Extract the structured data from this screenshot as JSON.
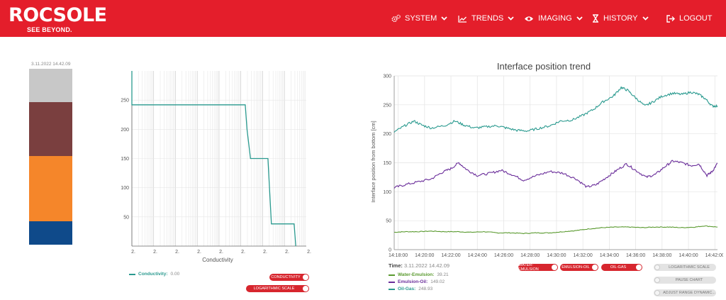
{
  "brand": {
    "logo_text": "ROCSOLE",
    "tagline": "SEE BEYOND."
  },
  "nav": {
    "system": "SYSTEM",
    "trends": "TRENDS",
    "imaging": "IMAGING",
    "history": "HISTORY",
    "logout": "LOGOUT"
  },
  "column": {
    "timestamp": "3.11.2022 14.42.09",
    "layers": [
      {
        "name": "gas",
        "color": "#c8c8c8"
      },
      {
        "name": "oil",
        "color": "#7a3f3f"
      },
      {
        "name": "emulsion",
        "color": "#f5862a"
      },
      {
        "name": "water",
        "color": "#0f4a8a"
      }
    ]
  },
  "conductivity_panel": {
    "xlabel": "Conductivity",
    "legend_label": "Conductivity:",
    "legend_value": "0.00",
    "toggle_conductivity": "CONDUCTIVITY",
    "toggle_log": "LOGARITHMIC SCALE"
  },
  "trend_panel": {
    "title": "Interface position trend",
    "ylabel": "Interface position from bottom [cm]",
    "time_label": "Time:",
    "time_value": "3.11.2022 14.42.09",
    "legend": [
      {
        "label": "Water-Emulsion:",
        "value": "39.21",
        "color": "#5a9a2f"
      },
      {
        "label": "Emulsion-Oil:",
        "value": "149.02",
        "color": "#6a2d9a"
      },
      {
        "label": "Oil-Gas:",
        "value": "248.93",
        "color": "#2a9a8f"
      }
    ],
    "series_toggles": [
      "WATER-EMULSION",
      "EMULSION-OIL",
      "OIL-GAS"
    ],
    "options": [
      "LOGARITHMIC SCALE",
      "PAUSE CHART",
      "ADJUST RANGE DYNAMIC..."
    ]
  },
  "chart_data": [
    {
      "type": "line",
      "title": "",
      "xlabel": "Conductivity",
      "ylabel": "",
      "ylim": [
        0,
        300
      ],
      "x_tick_labels": [
        "2.",
        "2.",
        "2.",
        "2.",
        "2.",
        "2.",
        "2.",
        "2.",
        "2."
      ],
      "y_ticks": [
        50,
        100,
        150,
        200,
        250
      ],
      "x_scale": "log",
      "series": [
        {
          "name": "Conductivity",
          "color": "#2a9a8f",
          "points": [
            [
              0.0,
              300
            ],
            [
              0.0,
              242
            ],
            [
              0.65,
              242
            ],
            [
              0.66,
              200
            ],
            [
              0.68,
              150
            ],
            [
              0.78,
              150
            ],
            [
              0.8,
              38
            ],
            [
              0.93,
              38
            ],
            [
              0.94,
              0
            ]
          ]
        }
      ]
    },
    {
      "type": "line",
      "title": "Interface position trend",
      "xlabel": "",
      "ylabel": "Interface position from bottom [cm]",
      "ylim": [
        0,
        300
      ],
      "y_ticks": [
        0,
        50,
        100,
        150,
        200,
        250,
        300
      ],
      "x_ticks": [
        "14:18:00",
        "14:20:00",
        "14:22:00",
        "14:24:00",
        "14:26:00",
        "14:28:00",
        "14:30:00",
        "14:32:00",
        "14:34:00",
        "14:36:00",
        "14:38:00",
        "14:40:00",
        "14:42:00"
      ],
      "x_minutes_start": 17.7,
      "x_minutes_end": 42.2,
      "series": [
        {
          "name": "Water-Emulsion",
          "color": "#5a9a2f",
          "points": [
            [
              17.7,
              30
            ],
            [
              18.5,
              31
            ],
            [
              19.5,
              31
            ],
            [
              20.5,
              32
            ],
            [
              21.5,
              31
            ],
            [
              22.5,
              31
            ],
            [
              23.5,
              30
            ],
            [
              24.5,
              31
            ],
            [
              25.5,
              29
            ],
            [
              26.5,
              29
            ],
            [
              27.5,
              28
            ],
            [
              28.5,
              29
            ],
            [
              29.5,
              29
            ],
            [
              30.5,
              31
            ],
            [
              31.5,
              33
            ],
            [
              32.5,
              36
            ],
            [
              33.5,
              38
            ],
            [
              34.5,
              39
            ],
            [
              35.5,
              39
            ],
            [
              36.5,
              38
            ],
            [
              37.5,
              39
            ],
            [
              38.5,
              39
            ],
            [
              39.5,
              38
            ],
            [
              40.5,
              39
            ],
            [
              41.2,
              41
            ],
            [
              42.2,
              39
            ]
          ]
        },
        {
          "name": "Emulsion-Oil",
          "color": "#6a2d9a",
          "points": [
            [
              17.7,
              107
            ],
            [
              18.5,
              112
            ],
            [
              19.5,
              117
            ],
            [
              20.5,
              122
            ],
            [
              21.3,
              133
            ],
            [
              22.0,
              140
            ],
            [
              22.6,
              150
            ],
            [
              23.2,
              138
            ],
            [
              24.0,
              128
            ],
            [
              25.0,
              132
            ],
            [
              25.8,
              137
            ],
            [
              26.6,
              130
            ],
            [
              27.5,
              120
            ],
            [
              28.5,
              128
            ],
            [
              29.5,
              135
            ],
            [
              30.5,
              132
            ],
            [
              31.5,
              122
            ],
            [
              32.3,
              108
            ],
            [
              33.0,
              112
            ],
            [
              33.8,
              125
            ],
            [
              34.5,
              136
            ],
            [
              35.3,
              148
            ],
            [
              36.0,
              137
            ],
            [
              36.8,
              125
            ],
            [
              37.5,
              130
            ],
            [
              38.2,
              143
            ],
            [
              38.8,
              153
            ],
            [
              39.5,
              150
            ],
            [
              40.2,
              145
            ],
            [
              40.8,
              148
            ],
            [
              41.4,
              128
            ],
            [
              41.8,
              135
            ],
            [
              42.2,
              149
            ]
          ]
        },
        {
          "name": "Oil-Gas",
          "color": "#2a9a8f",
          "points": [
            [
              17.7,
              203
            ],
            [
              18.5,
              214
            ],
            [
              19.2,
              222
            ],
            [
              19.8,
              215
            ],
            [
              20.5,
              210
            ],
            [
              21.5,
              214
            ],
            [
              22.3,
              222
            ],
            [
              23.0,
              215
            ],
            [
              23.8,
              210
            ],
            [
              24.6,
              212
            ],
            [
              25.5,
              214
            ],
            [
              26.2,
              210
            ],
            [
              27.0,
              206
            ],
            [
              27.8,
              205
            ],
            [
              28.6,
              209
            ],
            [
              29.5,
              214
            ],
            [
              30.3,
              222
            ],
            [
              31.2,
              224
            ],
            [
              32.0,
              232
            ],
            [
              32.8,
              242
            ],
            [
              33.5,
              255
            ],
            [
              34.3,
              265
            ],
            [
              34.9,
              280
            ],
            [
              35.4,
              275
            ],
            [
              36.0,
              262
            ],
            [
              36.7,
              248
            ],
            [
              37.3,
              255
            ],
            [
              38.0,
              265
            ],
            [
              38.8,
              270
            ],
            [
              39.5,
              268
            ],
            [
              40.2,
              272
            ],
            [
              40.8,
              268
            ],
            [
              41.3,
              260
            ],
            [
              41.8,
              248
            ],
            [
              42.2,
              248
            ]
          ]
        }
      ]
    }
  ]
}
